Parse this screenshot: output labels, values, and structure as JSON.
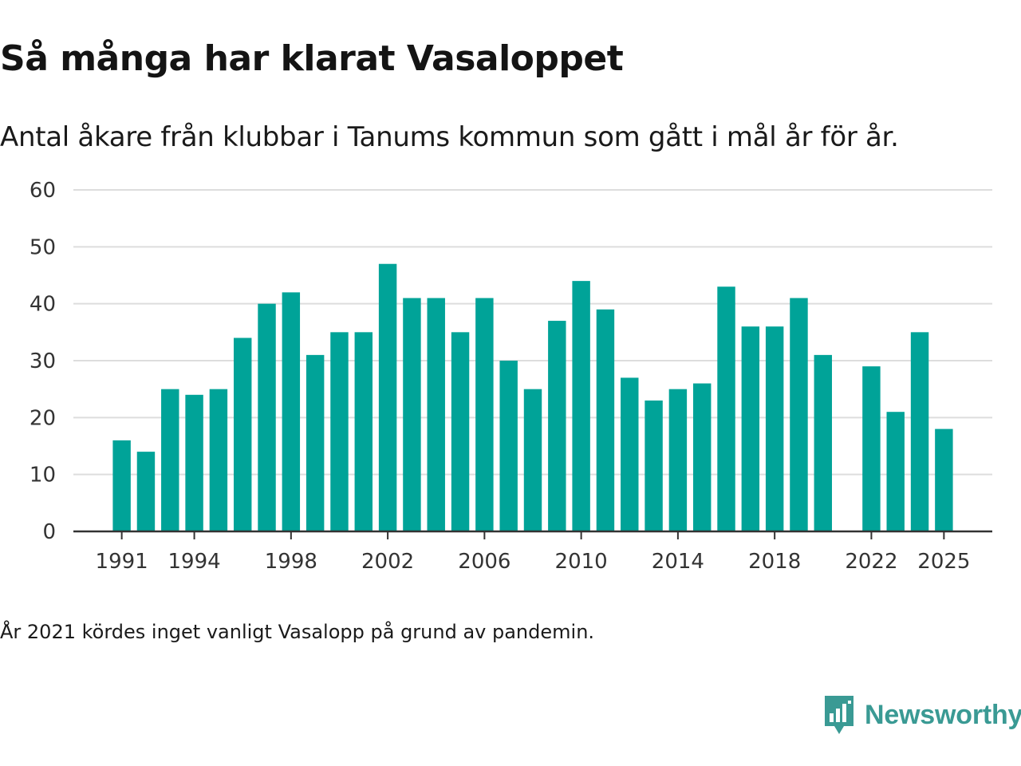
{
  "header": {
    "title": "Så många har klarat Vasaloppet",
    "subtitle": "Antal åkare från klubbar i Tanums kommun som gått i mål år för år."
  },
  "footer": {
    "note": "År 2021 kördes inget vanligt Vasalopp på grund av pandemin.",
    "brand": "Newsworthy"
  },
  "colors": {
    "bar": "#00a398",
    "grid": "#dddddd",
    "axis": "#333333",
    "brand": "#3a9a94"
  },
  "chart_data": {
    "type": "bar",
    "title": "Så många har klarat Vasaloppet",
    "xlabel": "",
    "ylabel": "",
    "ylim": [
      0,
      60
    ],
    "yticks": [
      0,
      10,
      20,
      30,
      40,
      50,
      60
    ],
    "xticks": [
      1991,
      1994,
      1998,
      2002,
      2006,
      2010,
      2014,
      2018,
      2022,
      2025
    ],
    "xlim": [
      1989,
      2027
    ],
    "grid": true,
    "categories": [
      1991,
      1992,
      1993,
      1994,
      1995,
      1996,
      1997,
      1998,
      1999,
      2000,
      2001,
      2002,
      2003,
      2004,
      2005,
      2006,
      2007,
      2008,
      2009,
      2010,
      2011,
      2012,
      2013,
      2014,
      2015,
      2016,
      2017,
      2018,
      2019,
      2020,
      2022,
      2023,
      2024,
      2025
    ],
    "values": [
      16,
      14,
      25,
      24,
      25,
      34,
      40,
      42,
      31,
      35,
      35,
      47,
      41,
      41,
      35,
      41,
      30,
      25,
      37,
      44,
      39,
      27,
      23,
      25,
      26,
      43,
      36,
      36,
      41,
      31,
      29,
      21,
      35,
      18
    ]
  }
}
